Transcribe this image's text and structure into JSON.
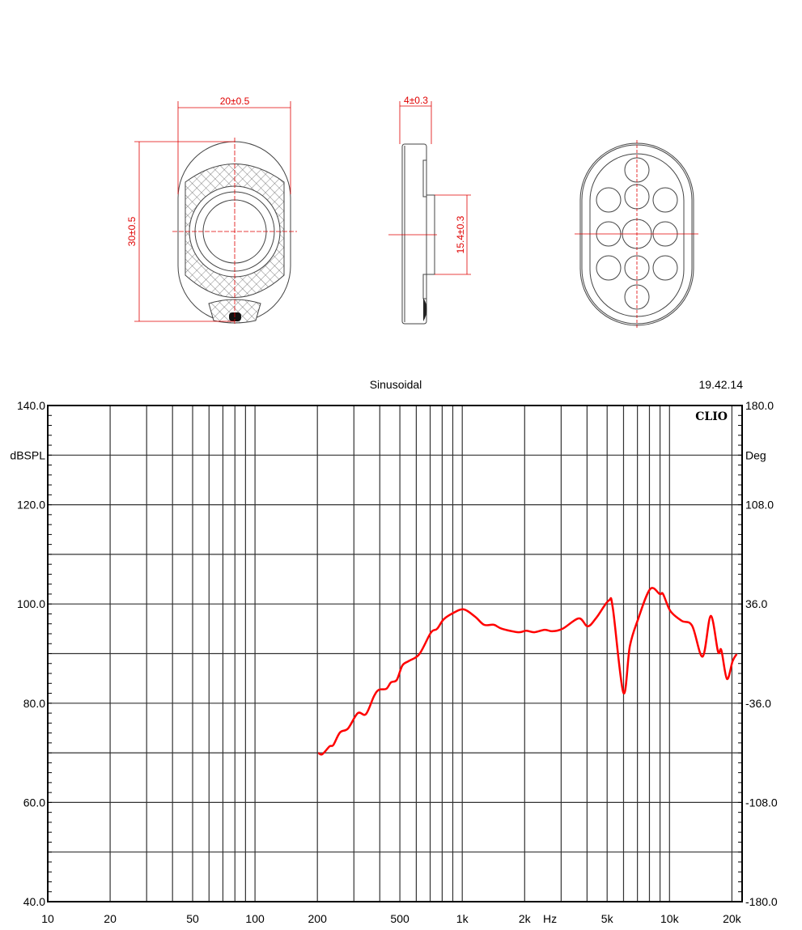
{
  "drawing": {
    "front_width": "20±0.5",
    "front_height": "30±0.5",
    "side_depth": "4±0.3",
    "side_boss": "15.4±0.3",
    "line_color": "#444444",
    "dimension_color": "#e00000"
  },
  "chart_header": {
    "title": "Sinusoidal",
    "time": "19.42.14",
    "logo": "CLIO"
  },
  "chart_data": {
    "type": "line",
    "title": "Sinusoidal",
    "xscale": "log",
    "xlim": [
      10,
      22400
    ],
    "ylim": [
      40,
      140
    ],
    "y2lim": [
      -180,
      180
    ],
    "xlabel": "Hz",
    "ylabel": "dBSPL",
    "y2label": "Deg",
    "grid": true,
    "x_ticks": [
      {
        "value": 10,
        "label": "10"
      },
      {
        "value": 20,
        "label": "20"
      },
      {
        "value": 50,
        "label": "50"
      },
      {
        "value": 100,
        "label": "100"
      },
      {
        "value": 200,
        "label": "200"
      },
      {
        "value": 500,
        "label": "500"
      },
      {
        "value": 1000,
        "label": "1k"
      },
      {
        "value": 2000,
        "label": "2k"
      },
      {
        "value": 5000,
        "label": "5k"
      },
      {
        "value": 10000,
        "label": "10k"
      },
      {
        "value": 20000,
        "label": "20k"
      }
    ],
    "y_ticks": [
      {
        "value": 140,
        "label": "140.0"
      },
      {
        "value": 120,
        "label": "120.0"
      },
      {
        "value": 100,
        "label": "100.0"
      },
      {
        "value": 80,
        "label": "80.0"
      },
      {
        "value": 60,
        "label": "60.0"
      },
      {
        "value": 40,
        "label": "40.0"
      }
    ],
    "y2_ticks": [
      {
        "value": 180,
        "label": "180.0"
      },
      {
        "value": 108,
        "label": "108.0"
      },
      {
        "value": 36,
        "label": "36.0"
      },
      {
        "value": -36,
        "label": "-36.0"
      },
      {
        "value": -108,
        "label": "-108.0"
      },
      {
        "value": -180,
        "label": "-180.0"
      }
    ],
    "series": [
      {
        "color": "#ff0000",
        "x": [
          202,
          211,
          229,
          239,
          257,
          281,
          313,
          343,
          375,
          396,
          430,
          453,
          483,
          514,
          552,
          621,
          705,
          757,
          813,
          906,
          1018,
          1156,
          1274,
          1420,
          1553,
          1862,
          2037,
          2228,
          2500,
          2716,
          3048,
          3652,
          4030,
          4448,
          5093,
          5329,
          5988,
          6438,
          7047,
          8057,
          8977,
          9305,
          10090,
          11450,
          12860,
          14450,
          15810,
          17140,
          17780,
          18930,
          20170,
          21090
        ],
        "y": [
          70.0,
          69.7,
          71.3,
          71.6,
          74.1,
          74.9,
          78.0,
          77.8,
          81.4,
          82.7,
          82.9,
          84.2,
          84.7,
          87.6,
          88.5,
          89.9,
          94.2,
          95.0,
          96.9,
          98.2,
          98.9,
          97.4,
          95.8,
          95.8,
          95.0,
          94.3,
          94.6,
          94.3,
          94.8,
          94.5,
          95.0,
          97.1,
          95.5,
          97.3,
          100.7,
          99.1,
          82.1,
          91.5,
          96.9,
          103.0,
          102.0,
          102.0,
          98.6,
          96.6,
          95.6,
          89.4,
          97.6,
          90.4,
          90.7,
          84.9,
          88.5,
          89.9
        ]
      }
    ]
  }
}
